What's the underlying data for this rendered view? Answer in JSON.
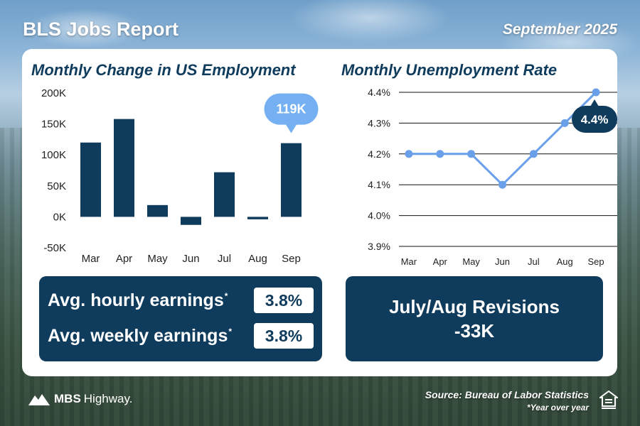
{
  "header": {
    "title": "BLS Jobs Report",
    "date": "September 2025"
  },
  "employment": {
    "title": "Monthly Change in US Employment",
    "callout": "119K"
  },
  "unemployment": {
    "title": "Monthly Unemployment Rate",
    "callout": "4.4%"
  },
  "earnings": {
    "hourly_label": "Avg. hourly earnings",
    "hourly_value": "3.8%",
    "weekly_label": "Avg. weekly earnings",
    "weekly_value": "3.8%",
    "footnote_mark": "*"
  },
  "revisions": {
    "line1": "July/Aug Revisions",
    "line2": "-33K"
  },
  "footer": {
    "logo_bold": "MBS",
    "logo_rest": "Highway.",
    "source": "Source: Bureau of Labor Statistics",
    "note": "*Year over year",
    "house_icon": "equal-housing-icon"
  },
  "colors": {
    "navy": "#0f3b5c",
    "line_blue": "#6aa0ea",
    "callout_blue": "#74b0f2"
  },
  "chart_data": [
    {
      "type": "bar",
      "title": "Monthly Change in US Employment",
      "categories": [
        "Mar",
        "Apr",
        "May",
        "Jun",
        "Jul",
        "Aug",
        "Sep"
      ],
      "values": [
        120000,
        158000,
        19000,
        -13000,
        72000,
        -4000,
        119000
      ],
      "ylim": [
        -50000,
        200000
      ],
      "yticks": [
        200000,
        150000,
        100000,
        50000,
        0,
        -50000
      ],
      "ytick_labels": [
        "200K",
        "150K",
        "100K",
        "50K",
        "0K",
        "-50K"
      ],
      "xlabel": "",
      "ylabel": "",
      "annotation": {
        "category": "Sep",
        "text": "119K"
      }
    },
    {
      "type": "line",
      "title": "Monthly Unemployment Rate",
      "categories": [
        "Mar",
        "Apr",
        "May",
        "Jun",
        "Jul",
        "Aug",
        "Sep"
      ],
      "values": [
        4.2,
        4.2,
        4.2,
        4.1,
        4.2,
        4.3,
        4.4
      ],
      "ylim": [
        3.9,
        4.4
      ],
      "yticks": [
        4.4,
        4.3,
        4.2,
        4.1,
        4.0,
        3.9
      ],
      "ytick_labels": [
        "4.4%",
        "4.3%",
        "4.2%",
        "4.1%",
        "4.0%",
        "3.9%"
      ],
      "grid": true,
      "xlabel": "",
      "ylabel": "",
      "annotation": {
        "category": "Sep",
        "text": "4.4%"
      }
    }
  ]
}
